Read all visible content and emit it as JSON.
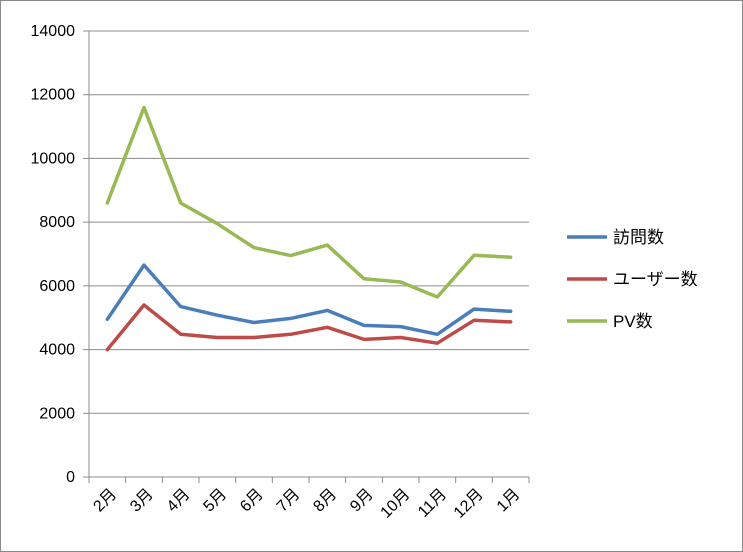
{
  "chart_data": {
    "type": "line",
    "categories": [
      "2月",
      "3月",
      "4月",
      "5月",
      "6月",
      "7月",
      "8月",
      "9月",
      "10月",
      "11月",
      "12月",
      "1月"
    ],
    "series": [
      {
        "name": "訪問数",
        "color": "#4a7ebb",
        "values": [
          4950,
          6650,
          5350,
          5080,
          4850,
          4980,
          5230,
          4760,
          4720,
          4480,
          5270,
          5200
        ]
      },
      {
        "name": "ユーザー数",
        "color": "#be4b48",
        "values": [
          4000,
          5400,
          4480,
          4380,
          4380,
          4480,
          4700,
          4320,
          4380,
          4200,
          4920,
          4870
        ]
      },
      {
        "name": "PV数",
        "color": "#98b954",
        "values": [
          8600,
          11600,
          8600,
          7950,
          7200,
          6950,
          7280,
          6220,
          6120,
          5650,
          6960,
          6900
        ]
      }
    ],
    "ylim": [
      0,
      14000
    ],
    "yticks": [
      0,
      2000,
      4000,
      6000,
      8000,
      10000,
      12000,
      14000
    ],
    "grid": true,
    "legend": "right"
  }
}
